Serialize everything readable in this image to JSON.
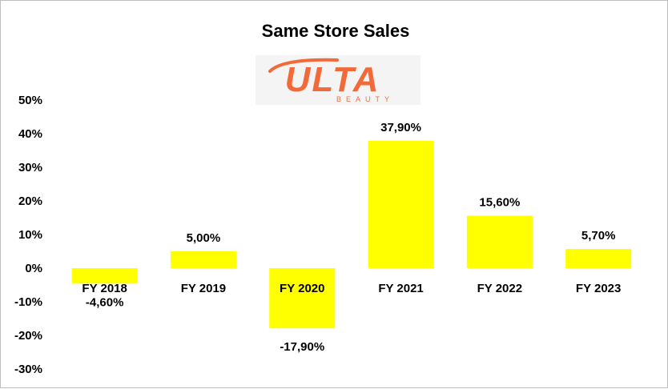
{
  "chart_data": {
    "type": "bar",
    "title": "Same Store Sales",
    "categories": [
      "FY 2018",
      "FY 2019",
      "FY 2020",
      "FY 2021",
      "FY 2022",
      "FY 2023"
    ],
    "values": [
      -4.6,
      5.0,
      -17.9,
      37.9,
      15.6,
      5.7
    ],
    "data_labels": [
      "-4,60%",
      "5,00%",
      "-17,90%",
      "37,90%",
      "15,60%",
      "5,70%"
    ],
    "y_ticks": [
      {
        "value": 50,
        "label": "50%"
      },
      {
        "value": 40,
        "label": "40%"
      },
      {
        "value": 30,
        "label": "30%"
      },
      {
        "value": 20,
        "label": "20%"
      },
      {
        "value": 10,
        "label": "10%"
      },
      {
        "value": 0,
        "label": "0%"
      },
      {
        "value": -10,
        "label": "-10%"
      },
      {
        "value": -20,
        "label": "-20%"
      },
      {
        "value": -30,
        "label": "-30%"
      }
    ],
    "ylim": [
      -30,
      50
    ],
    "grid": false,
    "bar_color": "#ffff00",
    "xlabel": "",
    "ylabel": ""
  },
  "logo": {
    "word": "ULTA",
    "sub": "BEAUTY",
    "color": "#f26a3a"
  }
}
